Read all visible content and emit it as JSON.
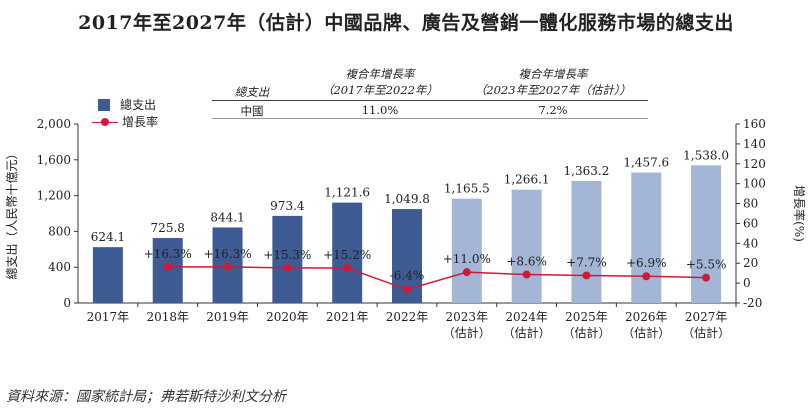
{
  "title": "2017年至2027年（估計）中國品牌、廣告及營銷一體化服務市場的總支出",
  "source": "資料來源：國家統計局；弗若斯特沙利文分析",
  "cagr_table": {
    "header_row_label": "總支出",
    "col1_title": "複合年增長率",
    "col1_period": "（2017年至2022年）",
    "col2_title": "複合年增長率",
    "col2_period": "（2023年至2027年（估計））",
    "row_label": "中國",
    "col1_value": "11.0%",
    "col2_value": "7.2%"
  },
  "legend": {
    "bar_label": "總支出",
    "line_label": "增長率"
  },
  "colors": {
    "bar_actual": "#3e5b93",
    "bar_estimate": "#a3b6d6",
    "line": "#d11a3a"
  },
  "chart_data": {
    "type": "bar+line",
    "categories": [
      "2017年",
      "2018年",
      "2019年",
      "2020年",
      "2021年",
      "2022年",
      "2023年",
      "2024年",
      "2025年",
      "2026年",
      "2027年"
    ],
    "category_sublabels": [
      "",
      "",
      "",
      "",
      "",
      "",
      "（估計）",
      "（估計）",
      "（估計）",
      "（估計）",
      "（估計）"
    ],
    "estimated": [
      false,
      false,
      false,
      false,
      false,
      false,
      true,
      true,
      true,
      true,
      true
    ],
    "series": [
      {
        "name": "總支出",
        "kind": "bar",
        "axis": "left",
        "values": [
          624.1,
          725.8,
          844.1,
          973.4,
          1121.6,
          1049.8,
          1165.5,
          1266.1,
          1363.2,
          1457.6,
          1538.0
        ],
        "labels": [
          "624.1",
          "725.8",
          "844.1",
          "973.4",
          "1,121.6",
          "1,049.8",
          "1,165.5",
          "1,266.1",
          "1,363.2",
          "1,457.6",
          "1,538.0"
        ]
      },
      {
        "name": "增長率",
        "kind": "line",
        "axis": "right",
        "values": [
          null,
          16.3,
          16.3,
          15.3,
          15.2,
          -6.4,
          11.0,
          8.6,
          7.7,
          6.9,
          5.5
        ],
        "labels": [
          "",
          "+16.3%",
          "+16.3%",
          "+15.3%",
          "+15.2%",
          "-6.4%",
          "+11.0%",
          "+8.6%",
          "+7.7%",
          "+6.9%",
          "+5.5%"
        ]
      }
    ],
    "ylabel": "總支出（人民幣十億元）",
    "ylim": [
      0,
      2000
    ],
    "yticks": [
      0,
      400,
      800,
      1200,
      1600,
      2000
    ],
    "ytick_labels": [
      "0",
      "400",
      "800",
      "1,200",
      "1,600",
      "2,000"
    ],
    "y2label": "增長率(%)",
    "y2lim": [
      -20,
      160
    ],
    "y2ticks": [
      -20,
      0,
      20,
      40,
      60,
      80,
      100,
      120,
      140,
      160
    ],
    "grid": false,
    "legend_position": "top-left"
  }
}
